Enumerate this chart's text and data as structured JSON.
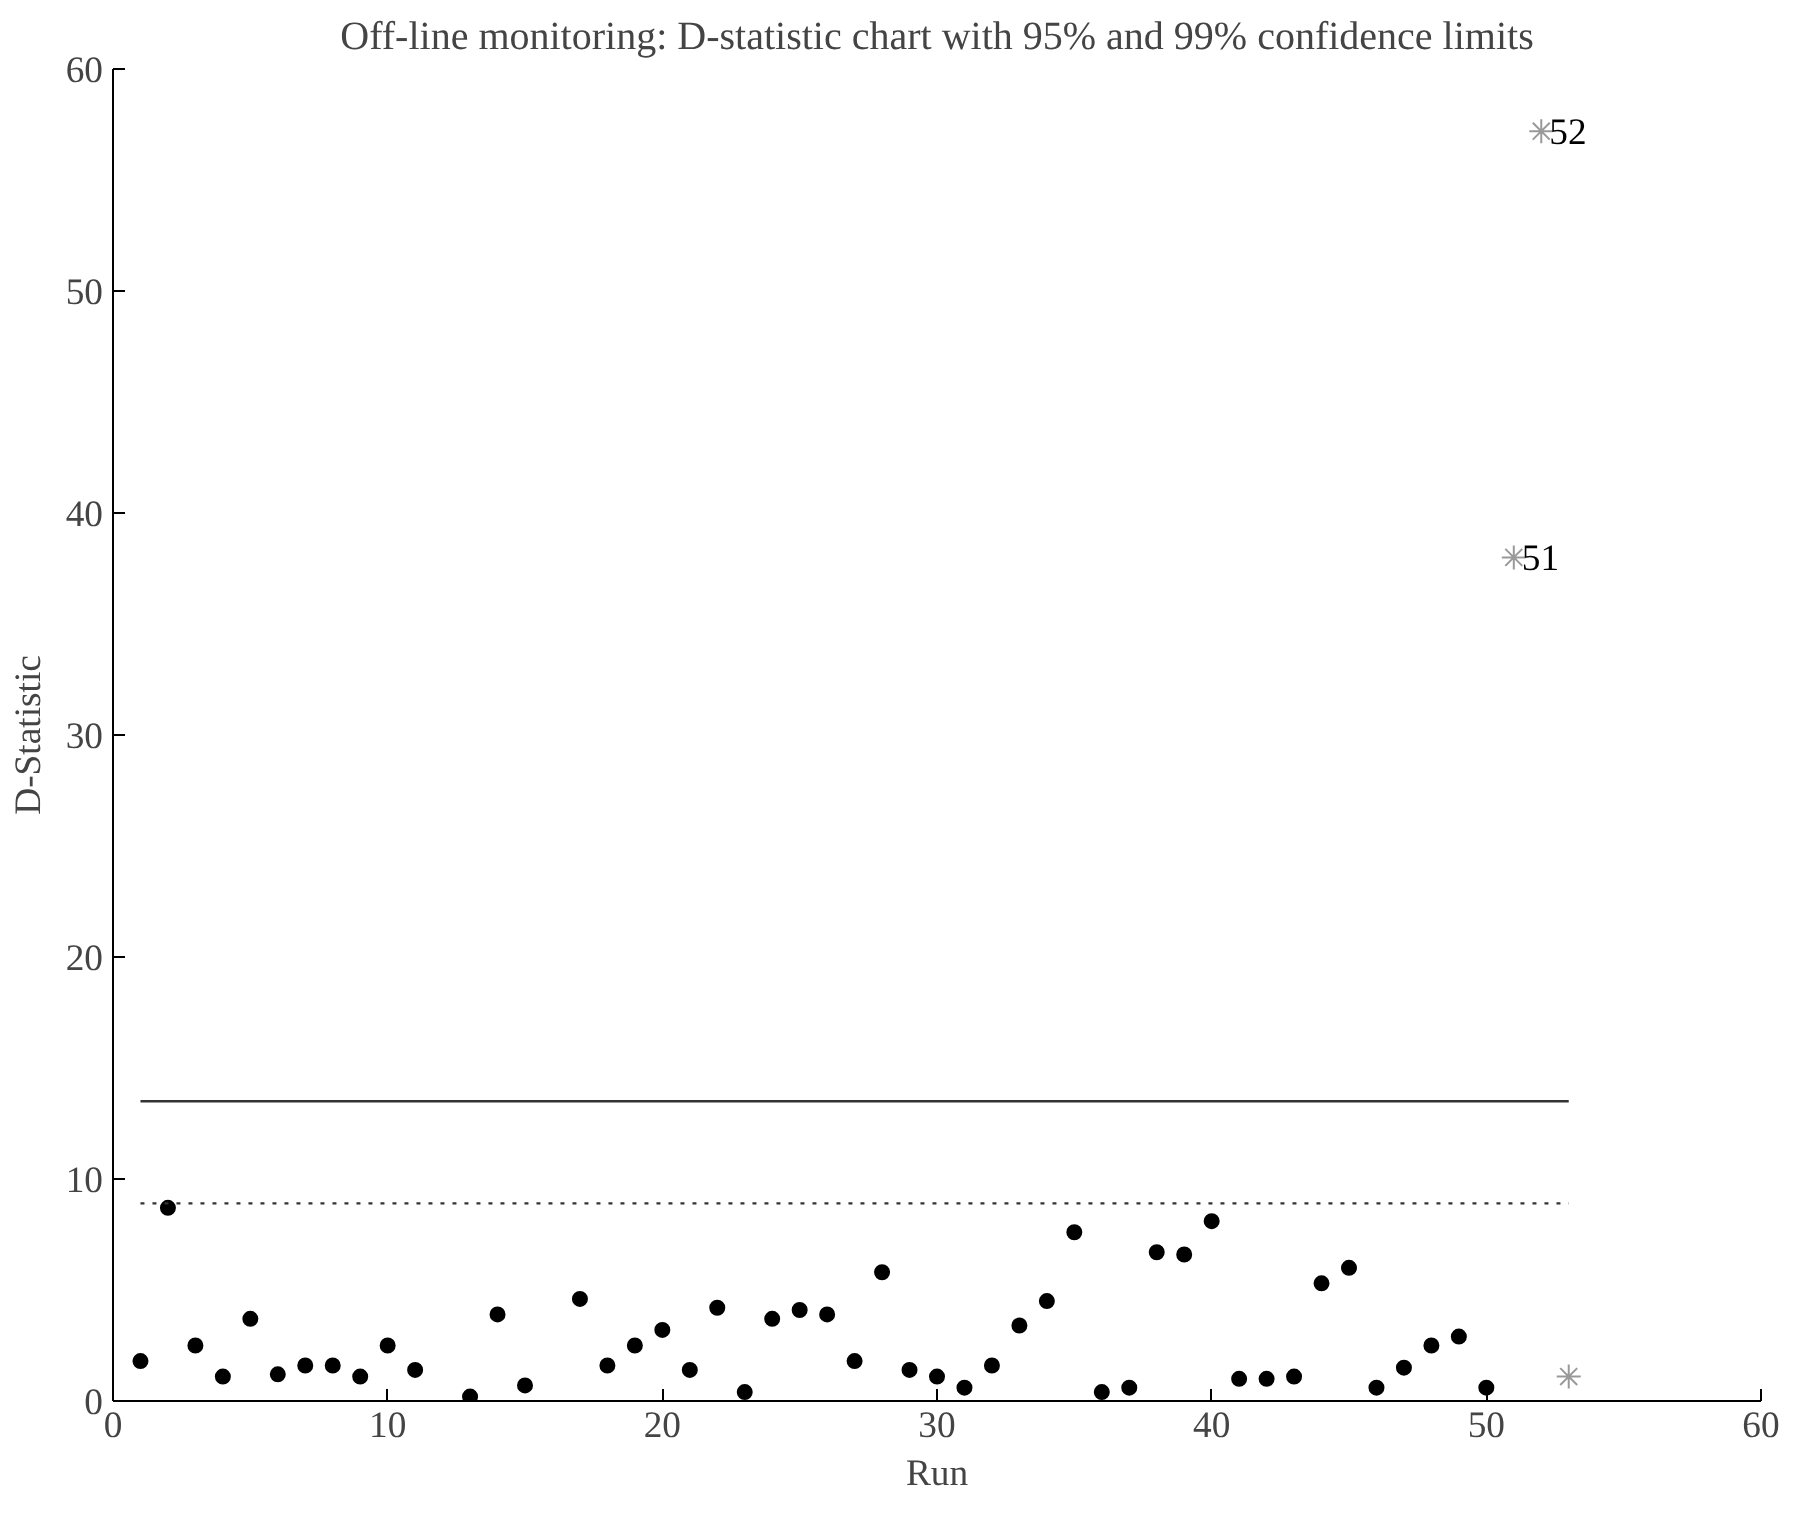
{
  "chart_data": {
    "type": "scatter",
    "title": "Off-line monitoring: D-statistic chart with 95% and 99% confidence limits",
    "xlabel": "Run",
    "ylabel": "D-Statistic",
    "xlim": [
      0,
      60
    ],
    "ylim": [
      0,
      60
    ],
    "xticks": [
      0,
      10,
      20,
      30,
      40,
      50,
      60
    ],
    "yticks": [
      0,
      10,
      20,
      30,
      40,
      50,
      60
    ],
    "grid": false,
    "series": [
      {
        "color": "#000000",
        "marker": "circle",
        "x": [
          1,
          2,
          3,
          4,
          5,
          6,
          7,
          8,
          9,
          10,
          11,
          13,
          14,
          15,
          17,
          18,
          19,
          20,
          21,
          22,
          23,
          24,
          25,
          26,
          27,
          28,
          29,
          30,
          31,
          32,
          33,
          34,
          35,
          36,
          37,
          38,
          39,
          40,
          41,
          42,
          43,
          44,
          45,
          46,
          47,
          48,
          49,
          50
        ],
        "values": [
          1.8,
          8.7,
          2.5,
          1.1,
          3.7,
          1.2,
          1.6,
          1.6,
          1.1,
          2.5,
          1.4,
          0.2,
          3.9,
          0.7,
          4.6,
          1.6,
          2.5,
          3.2,
          1.4,
          4.2,
          0.4,
          3.7,
          4.1,
          3.9,
          1.8,
          5.8,
          1.4,
          1.1,
          0.6,
          1.6,
          3.4,
          4.5,
          7.6,
          0.4,
          0.6,
          6.7,
          6.6,
          8.1,
          1.0,
          1.0,
          1.1,
          5.3,
          6.0,
          0.6,
          1.5,
          2.5,
          2.9,
          0.6
        ]
      },
      {
        "color": "#999999",
        "marker": "cross",
        "x": [
          51,
          52,
          53
        ],
        "values": [
          38,
          57.2,
          1.1
        ]
      }
    ],
    "ref_lines": [
      {
        "axis": "y",
        "value": 13.5,
        "line_style": "solid",
        "color": "#333333"
      },
      {
        "axis": "y",
        "value": 8.9,
        "line_style": "dotted",
        "color": "#333333"
      }
    ],
    "annotations": [
      {
        "text": "51",
        "x": 51,
        "y": 38
      },
      {
        "text": "52",
        "x": 52,
        "y": 57.2
      }
    ]
  }
}
